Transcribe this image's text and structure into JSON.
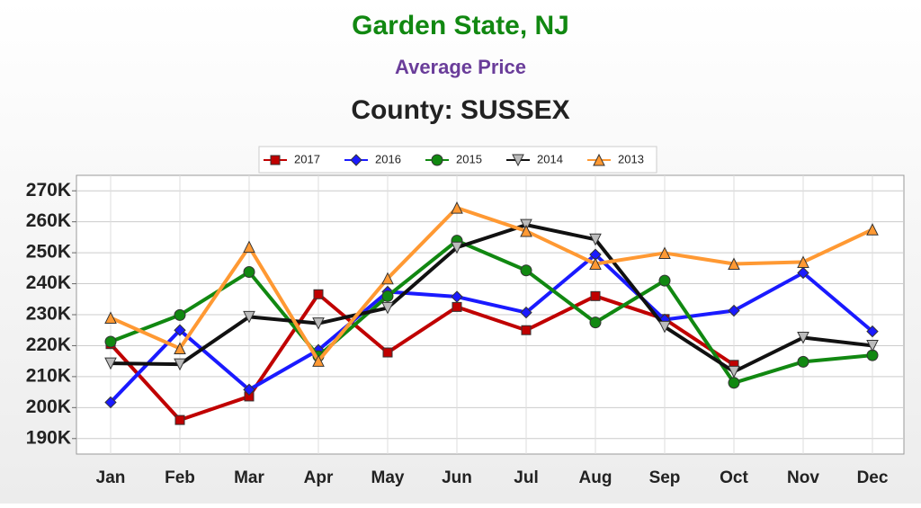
{
  "chart_data": {
    "type": "line",
    "title": "Garden State, NJ",
    "subtitle": "Average Price",
    "heading": "County: SUSSEX",
    "categories": [
      "Jan",
      "Feb",
      "Mar",
      "Apr",
      "May",
      "Jun",
      "Jul",
      "Aug",
      "Sep",
      "Oct",
      "Nov",
      "Dec"
    ],
    "series": [
      {
        "name": "2017",
        "color": "#c00000",
        "marker": "square",
        "values": [
          220.5,
          196,
          203.6,
          236.6,
          217.8,
          232.5,
          225,
          236,
          228.6,
          213.8,
          null,
          null
        ]
      },
      {
        "name": "2016",
        "color": "#1a1aff",
        "marker": "diamond",
        "values": [
          201.7,
          225,
          205.8,
          218.6,
          237.4,
          235.8,
          230.7,
          249.4,
          228.4,
          231.3,
          243.5,
          224.6
        ]
      },
      {
        "name": "2015",
        "color": "#118811",
        "marker": "circle",
        "values": [
          221.3,
          229.9,
          243.8,
          216.6,
          236,
          253.9,
          244.3,
          227.5,
          241,
          208,
          214.8,
          216.9
        ]
      },
      {
        "name": "2014",
        "color": "#111111",
        "marker": "triangle-down",
        "values": [
          214.3,
          214,
          229.3,
          227.2,
          232.2,
          251.7,
          259,
          254.3,
          226.1,
          211.6,
          222.6,
          220
        ]
      },
      {
        "name": "2013",
        "color": "#ff9933",
        "marker": "triangle-up",
        "values": [
          229,
          219.1,
          251.9,
          215.1,
          241.7,
          264.5,
          257,
          246.4,
          249.9,
          246.4,
          247,
          257.5
        ]
      }
    ],
    "ylim": [
      185,
      275
    ],
    "yticks": [
      {
        "value": 190,
        "label": "190K"
      },
      {
        "value": 200,
        "label": "200K"
      },
      {
        "value": 210,
        "label": "210K"
      },
      {
        "value": 220,
        "label": "220K"
      },
      {
        "value": 230,
        "label": "230K"
      },
      {
        "value": 240,
        "label": "240K"
      },
      {
        "value": 250,
        "label": "250K"
      },
      {
        "value": 260,
        "label": "260K"
      },
      {
        "value": 270,
        "label": "270K"
      }
    ],
    "grid": true
  }
}
